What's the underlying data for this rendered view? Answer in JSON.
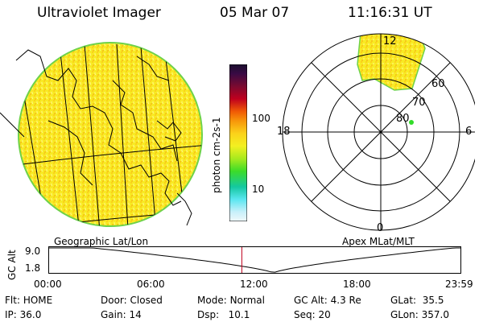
{
  "header": {
    "instrument": "Ultraviolet Imager",
    "date": "05 Mar 07",
    "time": "11:16:31 UT"
  },
  "colorbar": {
    "unit_label": "photon cm-2s-1",
    "ticks": [
      "100",
      "10"
    ],
    "colors": [
      "#1a0f2e",
      "#2b0a3a",
      "#5a0a3a",
      "#8b0025",
      "#c0001e",
      "#e6140a",
      "#f05a05",
      "#f7960a",
      "#fbc814",
      "#f7ee1e",
      "#c8ee1e",
      "#78e61e",
      "#32dc28",
      "#14c864",
      "#14d2b4",
      "#5ae6f0",
      "#a0eefa",
      "#d8f5fc",
      "#f0f8fa"
    ]
  },
  "polar": {
    "mlt_labels": {
      "top": "12",
      "left": "18",
      "right": "6",
      "bottom": "0"
    },
    "lat_labels": [
      "60",
      "70",
      "80"
    ]
  },
  "map_labels": {
    "left": "Geographic Lat/Lon",
    "right": "Apex MLat/MLT"
  },
  "altitude_plot": {
    "ylabel": "GC Alt",
    "ymax": "9.0",
    "ymin": "1.8",
    "x_ticks": [
      "00:00",
      "06:00",
      "12:00",
      "18:00",
      "23:59"
    ],
    "current_marker_hour": 11.27
  },
  "status": {
    "row1": [
      {
        "label": "Flt:",
        "value": "HOME"
      },
      {
        "label": "Door:",
        "value": "Closed"
      },
      {
        "label": "Mode:",
        "value": "Normal"
      },
      {
        "label": "GC Alt:",
        "value": "4.3 Re"
      },
      {
        "label": "GLat:",
        "value": "35.5"
      }
    ],
    "row2": [
      {
        "label": "IP:",
        "value": "36.0"
      },
      {
        "label": "Gain:",
        "value": "14"
      },
      {
        "label": "Dsp:",
        "value": "10.1"
      },
      {
        "label": "Seq:",
        "value": "20"
      },
      {
        "label": "GLon:",
        "value": "357.0"
      }
    ]
  }
}
